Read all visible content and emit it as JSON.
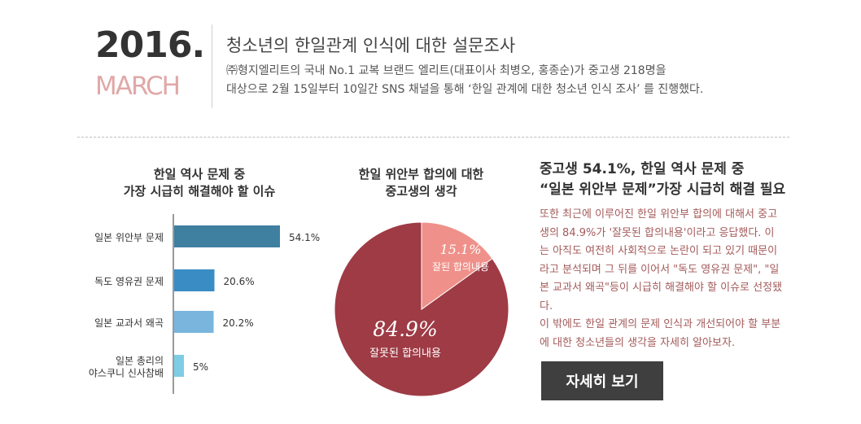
{
  "header": {
    "year": "2016.",
    "month": "MARCH",
    "headline": "청소년의 한일관계 인식에 대한 설문조사",
    "intro_line1": "㈜형지엘리트의 국내 No.1 교복 브랜드 엘리트(대표이사 최병오, 홍종순)가 중고생 218명을",
    "intro_line2": "대상으로 2월 15일부터 10일간 SNS 채널을 통해 ‘한일 관계에 대한 청소년 인식 조사’ 를 진행했다."
  },
  "colors": {
    "bar_dark": "#3f7fa0",
    "bar_mid": "#3a8cc4",
    "bar_light": "#7ab5de",
    "bar_lighter": "#7ecde4",
    "pie_major": "#9e3b45",
    "pie_minor": "#ef918a",
    "side_text": "#a45a5a"
  },
  "chart_data": [
    {
      "type": "bar",
      "orientation": "horizontal",
      "title_line1": "한일 역사 문제 중",
      "title_line2": "가장 시급히 해결해야 할 이슈",
      "categories": [
        "일본 위안부 문제",
        "독도 영유권 문제",
        "일본 교과서 왜곡",
        "일본 총리의\n야스쿠니 신사참배"
      ],
      "values": [
        54.1,
        20.6,
        20.2,
        5
      ],
      "value_labels": [
        "54.1%",
        "20.6%",
        "20.2%",
        "5%"
      ],
      "unit": "%",
      "xlim": [
        0,
        60
      ]
    },
    {
      "type": "pie",
      "title_line1": "한일 위안부 합의에 대한",
      "title_line2": "중고생의 생각",
      "slices": [
        {
          "label": "잘못된 합의내용",
          "value": 84.9,
          "value_label": "84.9%"
        },
        {
          "label": "잘된 합의내용",
          "value": 15.1,
          "value_label": "15.1%"
        }
      ]
    }
  ],
  "side": {
    "title_line1": "중고생 54.1%, 한일 역사 문제 중",
    "title_line2": "“일본 위안부 문제”가장 시급히 해결 필요",
    "para1": "또한 최근에 이루어진 한일 위안부 합의에 대해서 중고생의 84.9%가 '잘못된 합의내용'이라고 응답했다. 이는 아직도 여전히 사회적으로 논란이 되고 있기 때문이라고 분석되며 그 뒤를 이어서 \"독도 영유권 문제\", \"일본 교과서 왜곡\"등이 시급히 해결해야 할 이슈로 선정됐다.",
    "para2": "이 밖에도 한일 관계의 문제 인식과 개선되어야 할 부분에 대한 청소년들의 생각을 자세히 알아보자.",
    "button_label": "자세히 보기"
  }
}
